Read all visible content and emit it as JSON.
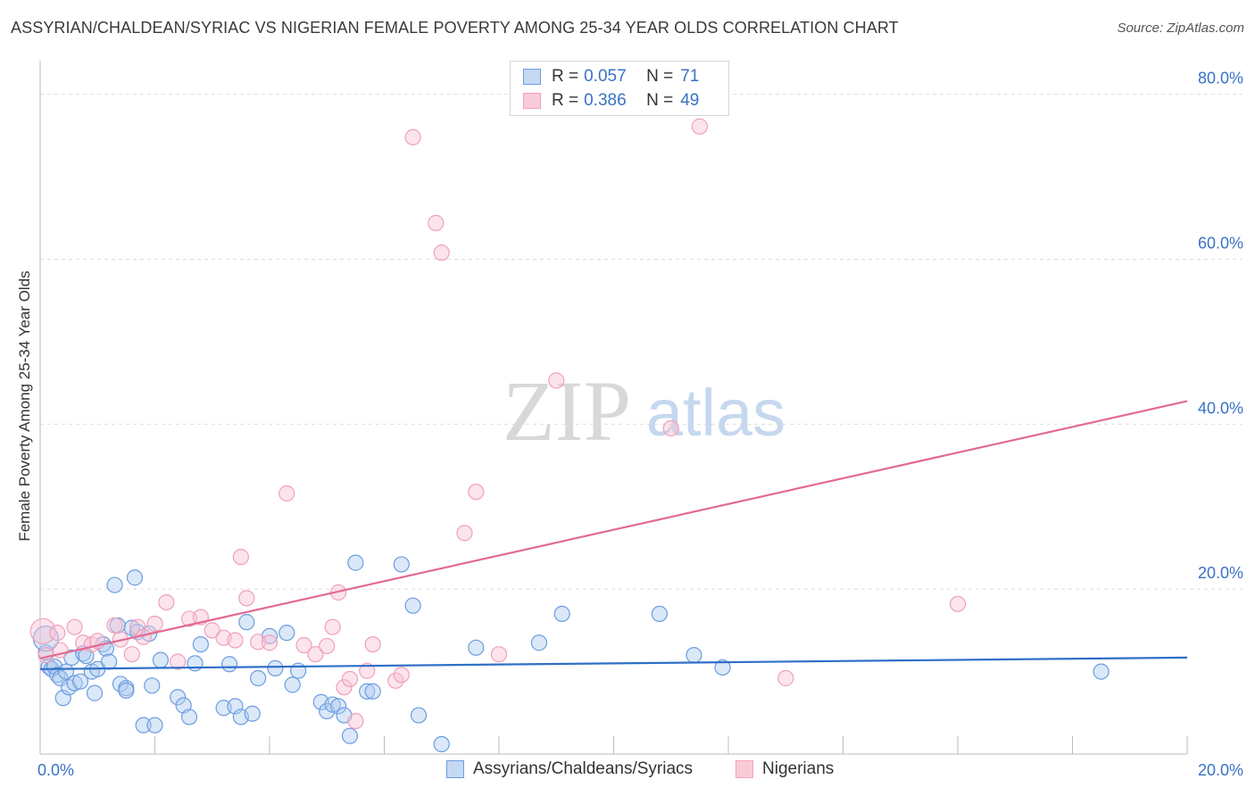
{
  "title": "ASSYRIAN/CHALDEAN/SYRIAC VS NIGERIAN FEMALE POVERTY AMONG 25-34 YEAR OLDS CORRELATION CHART",
  "source": "Source: ZipAtlas.com",
  "watermark": {
    "zip": "ZIP",
    "atlas": "atlas"
  },
  "legend": {
    "r_label": "R =",
    "n_label": "N =",
    "series1": {
      "r": "0.057",
      "n": "71"
    },
    "series2": {
      "r": "0.386",
      "n": "49"
    }
  },
  "chart_data": {
    "type": "scatter",
    "title": "ASSYRIAN/CHALDEAN/SYRIAC VS NIGERIAN FEMALE POVERTY AMONG 25-34 YEAR OLDS CORRELATION CHART",
    "xlabel": "",
    "ylabel": "Female Poverty Among 25-34 Year Olds",
    "xlim": [
      0,
      20
    ],
    "ylim": [
      0,
      83
    ],
    "x_tick_labels": [
      "0.0%",
      "20.0%"
    ],
    "y_ticks": [
      20,
      40,
      60,
      80
    ],
    "y_tick_labels": [
      "20.0%",
      "40.0%",
      "60.0%",
      "80.0%"
    ],
    "grid": true,
    "legend_position": "top-center",
    "colors": {
      "series1": "#6b9de0",
      "series2": "#f3a3bc",
      "trend1": "#2f6fc7",
      "trend2": "#e26a93",
      "axis_text": "#3a72c4"
    },
    "series": [
      {
        "name": "Assyrians/Chaldeans/Syriacs",
        "trend": {
          "x": [
            0,
            20
          ],
          "y": [
            10.3,
            11.7
          ]
        },
        "x": [
          0.1,
          0.15,
          0.2,
          0.25,
          0.3,
          0.35,
          0.4,
          0.45,
          0.5,
          0.55,
          0.6,
          0.7,
          0.75,
          0.8,
          0.9,
          0.95,
          1.0,
          1.1,
          1.15,
          1.2,
          1.3,
          1.35,
          1.4,
          1.5,
          1.5,
          1.6,
          1.65,
          1.7,
          1.8,
          1.9,
          1.95,
          2.0,
          2.1,
          2.4,
          2.5,
          2.6,
          2.7,
          2.8,
          3.2,
          3.3,
          3.4,
          3.5,
          3.6,
          3.7,
          3.8,
          4.0,
          4.1,
          4.3,
          4.4,
          4.5,
          4.9,
          5.0,
          5.1,
          5.2,
          5.3,
          5.4,
          5.5,
          5.7,
          5.8,
          6.3,
          6.5,
          6.6,
          7.0,
          7.6,
          8.7,
          9.1,
          10.8,
          11.4,
          11.9,
          18.5,
          0.1
        ],
        "y": [
          12.3,
          10.6,
          10.3,
          10.6,
          9.6,
          9.2,
          6.8,
          10.0,
          8.1,
          11.7,
          8.6,
          8.8,
          12.2,
          11.9,
          10.0,
          7.4,
          10.3,
          13.3,
          12.8,
          11.2,
          20.5,
          15.6,
          8.5,
          8.0,
          7.7,
          15.3,
          21.4,
          14.8,
          3.5,
          14.6,
          8.3,
          3.5,
          11.4,
          6.9,
          5.9,
          4.5,
          11.0,
          13.3,
          5.6,
          10.9,
          5.8,
          4.5,
          16.0,
          4.9,
          9.2,
          14.3,
          10.4,
          14.7,
          8.4,
          10.1,
          6.3,
          5.2,
          6.0,
          5.8,
          4.7,
          2.2,
          23.2,
          7.6,
          7.6,
          23.0,
          18.0,
          4.7,
          1.2,
          12.9,
          13.5,
          17.0,
          17.0,
          12.0,
          10.5,
          10.0,
          14.0
        ]
      },
      {
        "name": "Nigerians",
        "trend": {
          "x": [
            0,
            20
          ],
          "y": [
            11.6,
            42.8
          ]
        },
        "x": [
          0.05,
          0.1,
          0.3,
          0.35,
          0.6,
          0.75,
          0.9,
          1.0,
          1.3,
          1.4,
          1.6,
          1.7,
          1.8,
          2.0,
          2.2,
          2.4,
          2.6,
          2.8,
          3.0,
          3.2,
          3.4,
          3.5,
          3.6,
          3.8,
          4.0,
          4.3,
          4.6,
          4.8,
          5.0,
          5.1,
          5.2,
          5.3,
          5.4,
          5.5,
          5.7,
          5.8,
          6.2,
          6.3,
          6.5,
          6.9,
          7.0,
          7.4,
          7.6,
          8.0,
          9.0,
          11.0,
          11.5,
          13.0,
          16.0
        ],
        "y": [
          14.9,
          12.0,
          14.7,
          12.6,
          15.4,
          13.5,
          13.3,
          13.7,
          15.6,
          13.9,
          12.1,
          15.4,
          14.2,
          15.8,
          18.4,
          11.2,
          16.4,
          16.6,
          15.0,
          14.1,
          13.8,
          23.9,
          18.9,
          13.6,
          13.5,
          31.6,
          13.2,
          12.1,
          13.1,
          15.4,
          19.6,
          8.1,
          9.1,
          4.0,
          10.1,
          13.3,
          8.9,
          9.6,
          74.8,
          64.4,
          60.8,
          26.8,
          31.8,
          12.1,
          45.3,
          39.5,
          76.1,
          9.2,
          18.2
        ]
      }
    ]
  },
  "bottom_legend": {
    "series1": "Assyrians/Chaldeans/Syriacs",
    "series2": "Nigerians"
  }
}
